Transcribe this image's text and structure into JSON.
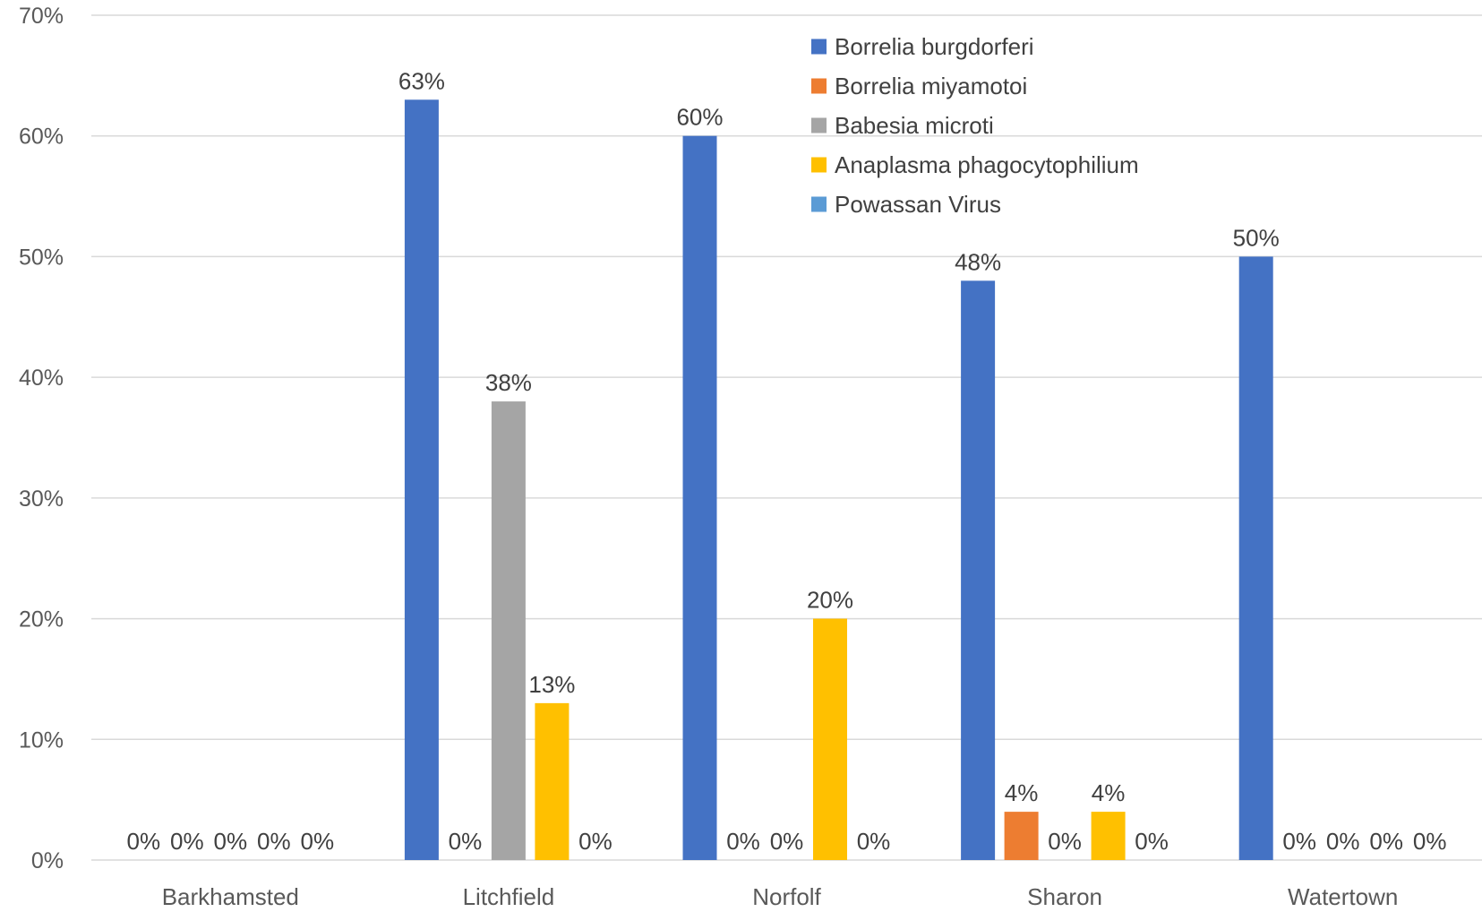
{
  "chart_data": {
    "type": "bar",
    "title": "",
    "xlabel": "",
    "ylabel": "",
    "categories": [
      "Barkhamsted",
      "Litchfield",
      "Norfolf",
      "Sharon",
      "Watertown"
    ],
    "series": [
      {
        "name": "Borrelia burgdorferi",
        "color": "#4472c4",
        "values": [
          0,
          63,
          60,
          48,
          50
        ]
      },
      {
        "name": "Borrelia miyamotoi",
        "color": "#ed7d31",
        "values": [
          0,
          0,
          0,
          4,
          0
        ]
      },
      {
        "name": "Babesia microti",
        "color": "#a5a5a5",
        "values": [
          0,
          38,
          0,
          0,
          0
        ]
      },
      {
        "name": "Anaplasma phagocytophilium",
        "color": "#ffc000",
        "values": [
          0,
          13,
          20,
          4,
          0
        ]
      },
      {
        "name": "Powassan Virus",
        "color": "#5b9bd5",
        "values": [
          0,
          0,
          0,
          0,
          0
        ]
      }
    ],
    "value_labels": [
      [
        "0%",
        "63%",
        "60%",
        "48%",
        "50%"
      ],
      [
        "0%",
        "0%",
        "0%",
        "4%",
        "0%"
      ],
      [
        "0%",
        "38%",
        "0%",
        "0%",
        "0%"
      ],
      [
        "0%",
        "13%",
        "20%",
        "4%",
        "0%"
      ],
      [
        "0%",
        "0%",
        "0%",
        "0%",
        "0%"
      ]
    ],
    "yticks": [
      "0%",
      "10%",
      "20%",
      "30%",
      "40%",
      "50%",
      "60%",
      "70%"
    ],
    "ylim": [
      0,
      70
    ],
    "grid": true,
    "legend": "top-center"
  }
}
